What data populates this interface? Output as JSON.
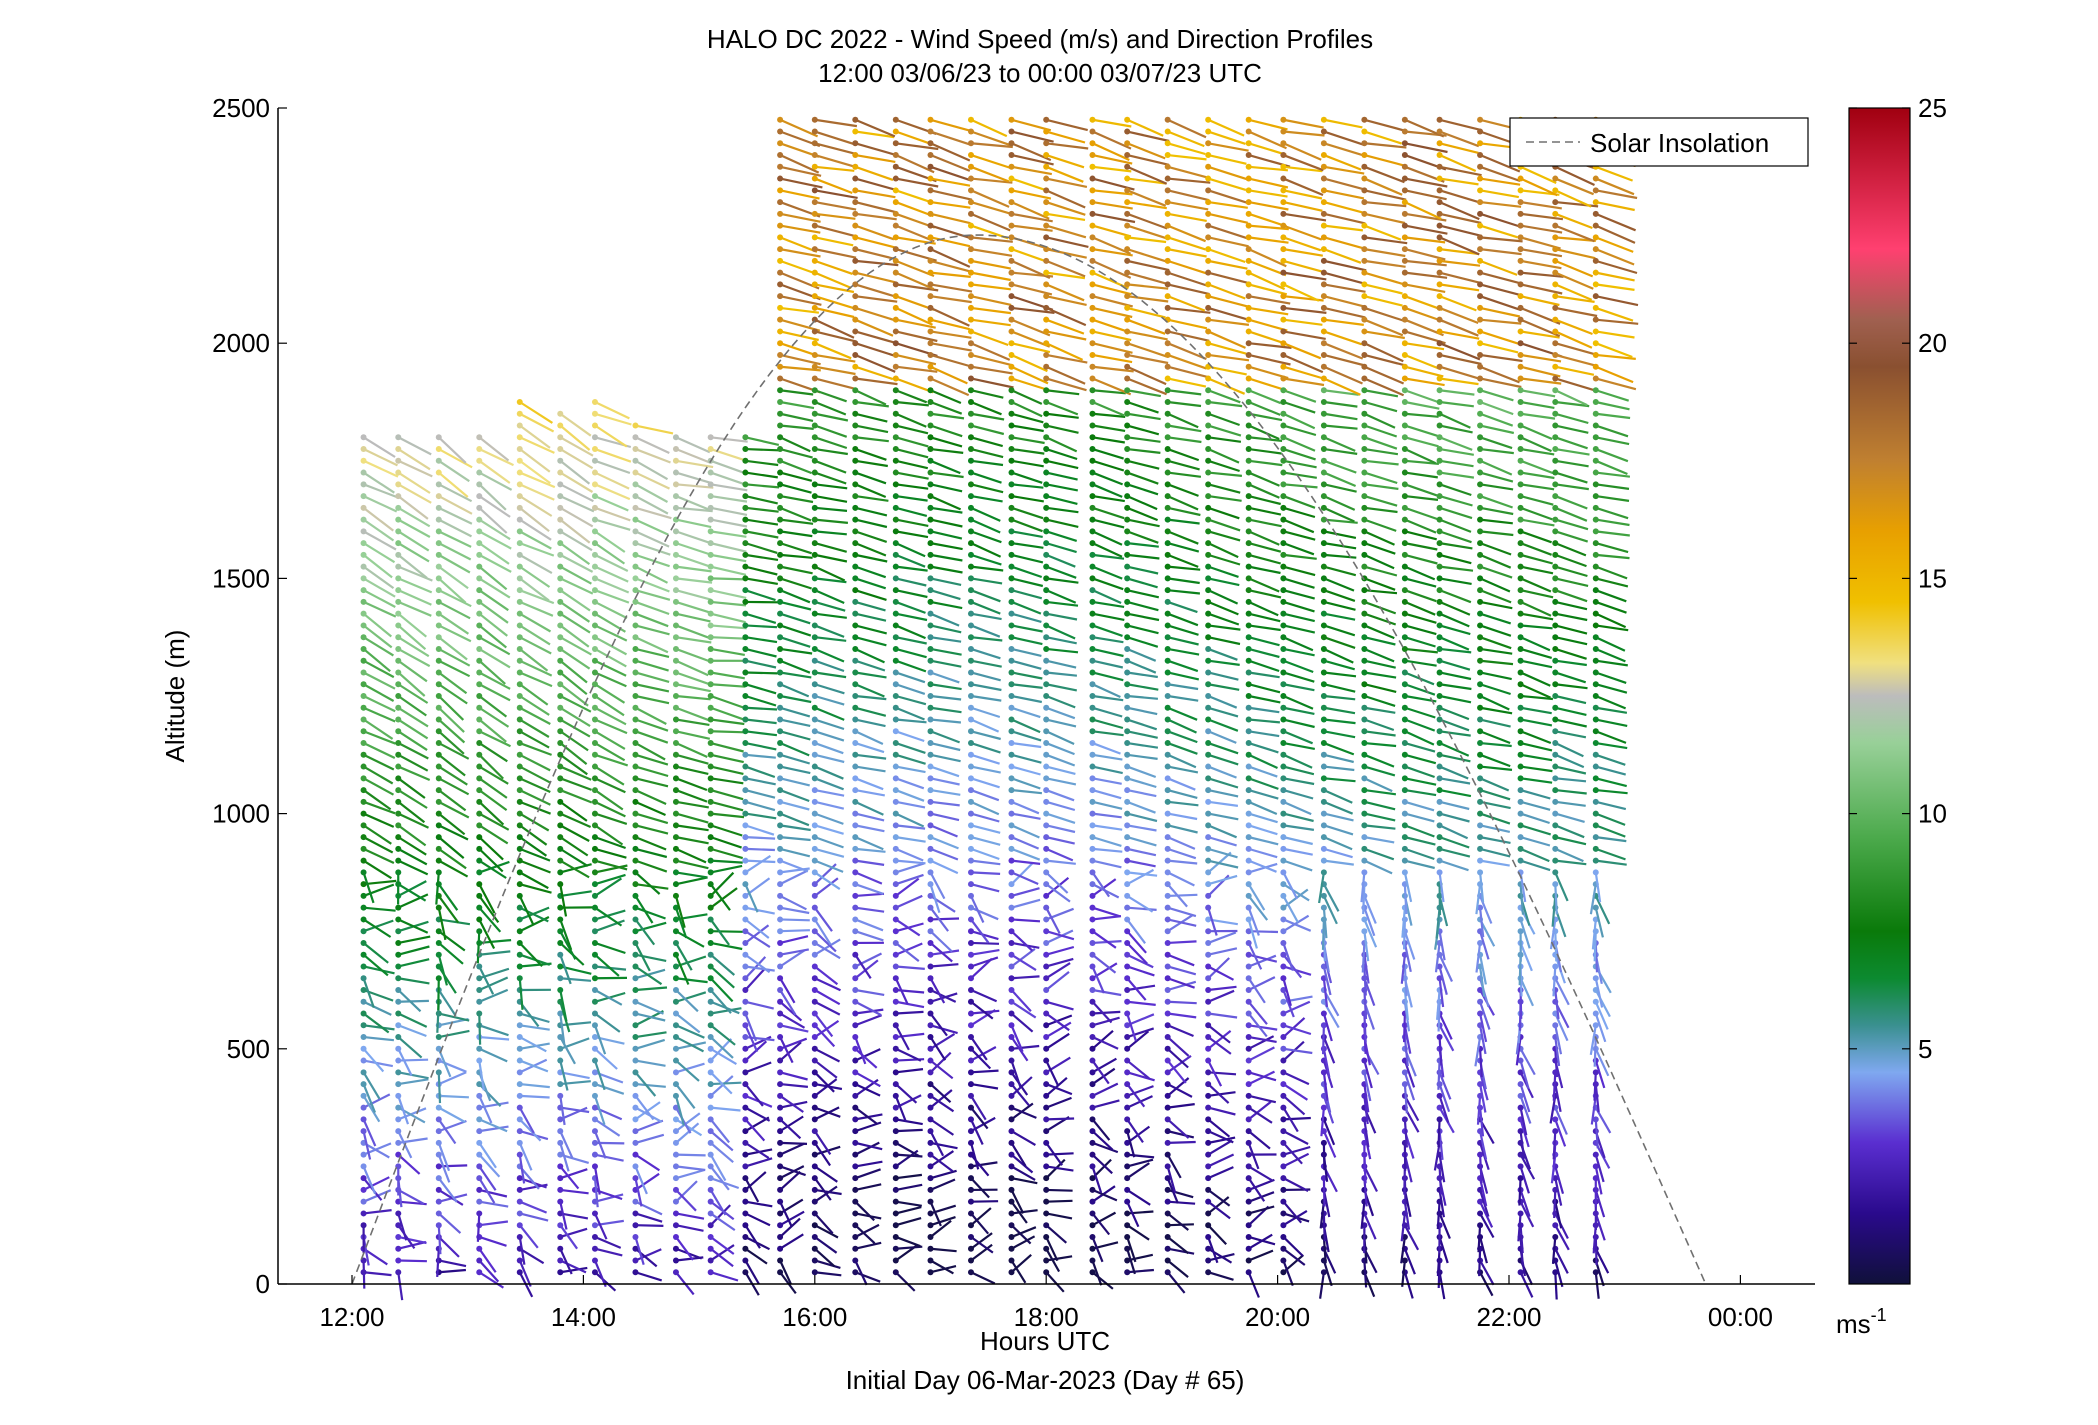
{
  "chart_data": {
    "type": "wind-barb-profile",
    "title": [
      "HALO DC 2022 - Wind Speed (m/s) and Direction Profiles",
      "12:00 03/06/23 to 00:00 03/07/23  UTC"
    ],
    "xlabel": "Hours UTC",
    "xlabel2": "Initial Day 06-Mar-2023 (Day # 65)",
    "ylabel": "Altitude (m)",
    "x_range_hours": [
      11.5,
      24.65
    ],
    "x_ticks": [
      {
        "value": 12,
        "label": "12:00"
      },
      {
        "value": 14,
        "label": "14:00"
      },
      {
        "value": 16,
        "label": "16:00"
      },
      {
        "value": 18,
        "label": "18:00"
      },
      {
        "value": 20,
        "label": "20:00"
      },
      {
        "value": 22,
        "label": "22:00"
      },
      {
        "value": 24,
        "label": "00:00"
      }
    ],
    "y_range_m": [
      0,
      2500
    ],
    "y_ticks": [
      0,
      500,
      1000,
      1500,
      2000,
      2500
    ],
    "colorbar": {
      "range": [
        0,
        25
      ],
      "ticks": [
        5,
        10,
        15,
        20,
        25
      ],
      "unit_base": "ms",
      "unit_exp": "-1",
      "stops": [
        {
          "v": 0,
          "c": "#10103a"
        },
        {
          "v": 1.5,
          "c": "#2a0a8c"
        },
        {
          "v": 3,
          "c": "#5a2ed0"
        },
        {
          "v": 4.5,
          "c": "#7fa8f0"
        },
        {
          "v": 5.5,
          "c": "#3a9090"
        },
        {
          "v": 6.5,
          "c": "#0c8a30"
        },
        {
          "v": 7.5,
          "c": "#0a7a0a"
        },
        {
          "v": 9.5,
          "c": "#4caa4c"
        },
        {
          "v": 11.5,
          "c": "#98d098"
        },
        {
          "v": 12.5,
          "c": "#bcbcbc"
        },
        {
          "v": 13.2,
          "c": "#f0e080"
        },
        {
          "v": 14.5,
          "c": "#f0c000"
        },
        {
          "v": 16,
          "c": "#e8a000"
        },
        {
          "v": 17.5,
          "c": "#c08030"
        },
        {
          "v": 19.5,
          "c": "#8a5030"
        },
        {
          "v": 20.5,
          "c": "#a06050"
        },
        {
          "v": 22,
          "c": "#ff4070"
        },
        {
          "v": 25,
          "c": "#a00010"
        }
      ]
    },
    "legend": {
      "label": "Solar Insolation",
      "position": "top-right",
      "style": "dashed",
      "color": "#808080"
    },
    "solar_insolation": {
      "start_hour": 12.0,
      "end_hour": 23.7,
      "peak_hour": 17.4,
      "peak_altitude_m": 2230
    },
    "profiles": [
      {
        "t": 12.1,
        "top": 1800,
        "dir": 300
      },
      {
        "t": 12.4,
        "top": 1800,
        "dir": 302
      },
      {
        "t": 12.75,
        "top": 1800,
        "dir": 305
      },
      {
        "t": 13.1,
        "top": 1800,
        "dir": 305
      },
      {
        "t": 13.45,
        "top": 1880,
        "dir": 300
      },
      {
        "t": 13.8,
        "top": 1850,
        "dir": 300
      },
      {
        "t": 14.1,
        "top": 1880,
        "dir": 295
      },
      {
        "t": 14.45,
        "top": 1840,
        "dir": 290
      },
      {
        "t": 14.8,
        "top": 1820,
        "dir": 285
      },
      {
        "t": 15.1,
        "top": 1810,
        "dir": 280
      },
      {
        "t": 15.4,
        "top": 1800,
        "dir": 280
      },
      {
        "t": 15.7,
        "top": 2480,
        "dir": 285
      },
      {
        "t": 16.0,
        "top": 2480,
        "dir": 285
      },
      {
        "t": 16.35,
        "top": 2480,
        "dir": 285
      },
      {
        "t": 16.7,
        "top": 2480,
        "dir": 285
      },
      {
        "t": 17.0,
        "top": 2480,
        "dir": 285
      },
      {
        "t": 17.35,
        "top": 2480,
        "dir": 285
      },
      {
        "t": 17.7,
        "top": 2480,
        "dir": 285
      },
      {
        "t": 18.0,
        "top": 2480,
        "dir": 285
      },
      {
        "t": 18.4,
        "top": 2480,
        "dir": 285
      },
      {
        "t": 18.7,
        "top": 2480,
        "dir": 285
      },
      {
        "t": 19.05,
        "top": 2480,
        "dir": 285
      },
      {
        "t": 19.4,
        "top": 2480,
        "dir": 285
      },
      {
        "t": 19.75,
        "top": 2480,
        "dir": 285
      },
      {
        "t": 20.05,
        "top": 2480,
        "dir": 285
      },
      {
        "t": 20.4,
        "top": 2480,
        "dir": 285
      },
      {
        "t": 20.75,
        "top": 2480,
        "dir": 285
      },
      {
        "t": 21.1,
        "top": 2480,
        "dir": 285
      },
      {
        "t": 21.4,
        "top": 2480,
        "dir": 285
      },
      {
        "t": 21.75,
        "top": 2480,
        "dir": 285
      },
      {
        "t": 22.1,
        "top": 2480,
        "dir": 285
      },
      {
        "t": 22.4,
        "top": 2480,
        "dir": 285
      },
      {
        "t": 22.75,
        "top": 2480,
        "dir": 285
      }
    ]
  }
}
